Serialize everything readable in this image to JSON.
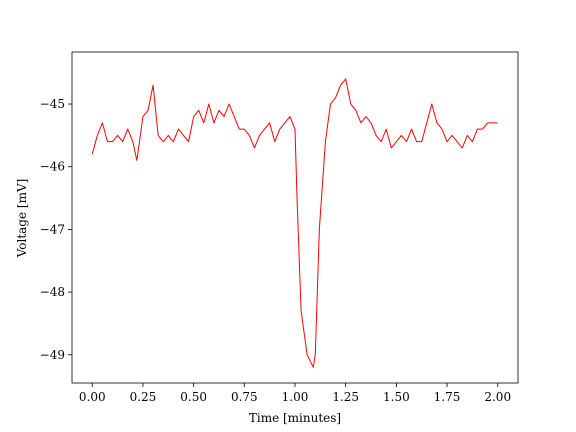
{
  "chart_data": {
    "type": "line",
    "xlabel": "Time [minutes]",
    "ylabel": "Voltage [mV]",
    "xlim": [
      -0.1,
      2.1
    ],
    "ylim": [
      -49.45,
      -44.17
    ],
    "xticks": [
      {
        "value": 0,
        "label": "0.00"
      },
      {
        "value": 0.25,
        "label": "0.25"
      },
      {
        "value": 0.5,
        "label": "0.50"
      },
      {
        "value": 0.75,
        "label": "0.75"
      },
      {
        "value": 1,
        "label": "1.00"
      },
      {
        "value": 1.25,
        "label": "1.25"
      },
      {
        "value": 1.5,
        "label": "1.50"
      },
      {
        "value": 1.75,
        "label": "1.75"
      },
      {
        "value": 2,
        "label": "2.00"
      }
    ],
    "yticks": [
      {
        "value": -49,
        "label": "−49"
      },
      {
        "value": -48,
        "label": "−48"
      },
      {
        "value": -47,
        "label": "−47"
      },
      {
        "value": -46,
        "label": "−46"
      },
      {
        "value": -45,
        "label": "−45"
      }
    ],
    "grid": false,
    "series": [
      {
        "color": "#ff0000",
        "x": [
          0,
          0.025,
          0.05,
          0.075,
          0.1,
          0.125,
          0.15,
          0.175,
          0.2,
          0.22,
          0.25,
          0.275,
          0.3,
          0.325,
          0.35,
          0.375,
          0.4,
          0.425,
          0.45,
          0.475,
          0.5,
          0.525,
          0.55,
          0.575,
          0.6,
          0.625,
          0.65,
          0.675,
          0.7,
          0.725,
          0.75,
          0.775,
          0.8,
          0.825,
          0.85,
          0.875,
          0.9,
          0.925,
          0.95,
          0.975,
          1.0,
          1.01,
          1.03,
          1.06,
          1.09,
          1.1,
          1.12,
          1.15,
          1.175,
          1.2,
          1.225,
          1.25,
          1.275,
          1.3,
          1.325,
          1.35,
          1.375,
          1.4,
          1.425,
          1.45,
          1.475,
          1.5,
          1.525,
          1.55,
          1.575,
          1.6,
          1.625,
          1.65,
          1.675,
          1.7,
          1.725,
          1.75,
          1.775,
          1.8,
          1.825,
          1.85,
          1.875,
          1.9,
          1.925,
          1.95,
          1.975,
          2.0
        ],
        "values": [
          -45.8,
          -45.5,
          -45.3,
          -45.6,
          -45.6,
          -45.5,
          -45.6,
          -45.4,
          -45.6,
          -45.9,
          -45.2,
          -45.1,
          -44.7,
          -45.5,
          -45.6,
          -45.5,
          -45.6,
          -45.4,
          -45.5,
          -45.6,
          -45.2,
          -45.1,
          -45.3,
          -45.0,
          -45.3,
          -45.1,
          -45.2,
          -45.0,
          -45.2,
          -45.4,
          -45.4,
          -45.5,
          -45.7,
          -45.5,
          -45.4,
          -45.3,
          -45.6,
          -45.4,
          -45.3,
          -45.2,
          -45.4,
          -46.5,
          -48.3,
          -49.0,
          -49.2,
          -49.0,
          -47.0,
          -45.6,
          -45.0,
          -44.9,
          -44.7,
          -44.6,
          -45.0,
          -45.1,
          -45.3,
          -45.2,
          -45.3,
          -45.5,
          -45.6,
          -45.4,
          -45.7,
          -45.6,
          -45.5,
          -45.6,
          -45.4,
          -45.6,
          -45.6,
          -45.3,
          -45.0,
          -45.3,
          -45.4,
          -45.6,
          -45.5,
          -45.6,
          -45.7,
          -45.5,
          -45.6,
          -45.4,
          -45.4,
          -45.3,
          -45.3,
          -45.3
        ]
      }
    ]
  }
}
